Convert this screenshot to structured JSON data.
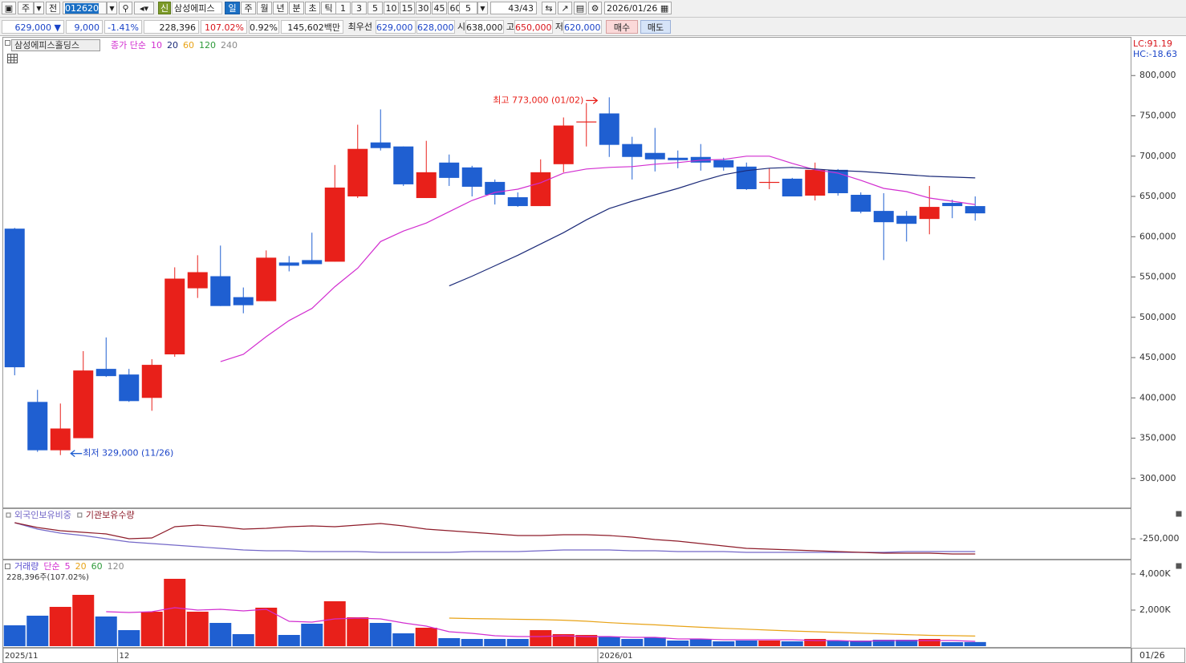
{
  "toolbar": {
    "market_button": "주",
    "all_button": "전",
    "code": "012620",
    "new_badge": "신",
    "name": "삼성에피스",
    "periods": [
      "일",
      "주",
      "월",
      "년",
      "분",
      "초",
      "틱"
    ],
    "intervals": [
      "1",
      "3",
      "5",
      "10",
      "15",
      "30",
      "45",
      "60"
    ],
    "interval_input": "5",
    "count": "43/43",
    "date": "2026/01/26"
  },
  "quote_bar": {
    "price": "629,000 ▼",
    "change": "9,000",
    "change_rate": "-1.41%",
    "volume": "228,396",
    "volume_rate": "107.02%",
    "turnover": "0.92%",
    "amount": "145,602백만",
    "best_label": "최우선",
    "best_ask": "629,000",
    "best_bid": "628,000",
    "open_label": "시",
    "open": "638,000",
    "high_label": "고",
    "high": "650,000",
    "low_label": "저",
    "low": "620,000",
    "buy": "매수",
    "sell": "매도"
  },
  "x_axis_cursor": "01/26",
  "chart_data": [
    {
      "type": "candlestick",
      "title": "삼성에피스홀딩스",
      "legend_label": "종가 단순",
      "stats": [
        "LC:91.19",
        "HC:-18.63"
      ],
      "high_label": "최고 773,000 (01/02)",
      "low_label": "최저 329,000 (11/26)",
      "up_color": "#e8201a",
      "down_color": "#1f5fd1",
      "open": [
        610000,
        395000,
        335000,
        350000,
        436000,
        429000,
        400000,
        454000,
        536000,
        551000,
        525000,
        520000,
        568000,
        571000,
        569000,
        650000,
        717000,
        712000,
        648000,
        692000,
        686000,
        668000,
        649000,
        638000,
        690000,
        742000,
        753000,
        715000,
        704000,
        698000,
        699000,
        695000,
        687000,
        667000,
        672000,
        651000,
        683000,
        652000,
        632000,
        626000,
        622000,
        642000,
        638000
      ],
      "high": [
        611000,
        410000,
        393000,
        458000,
        475000,
        436000,
        448000,
        562000,
        577000,
        589000,
        537000,
        583000,
        576000,
        605000,
        689000,
        739000,
        758000,
        712000,
        719000,
        702000,
        688000,
        671000,
        655000,
        696000,
        748000,
        766000,
        773000,
        724000,
        735000,
        707000,
        715000,
        698000,
        692000,
        685000,
        673000,
        692000,
        684000,
        655000,
        654000,
        632000,
        663000,
        646000,
        650000
      ],
      "low": [
        428000,
        333000,
        329000,
        350000,
        426000,
        395000,
        384000,
        451000,
        524000,
        514000,
        505000,
        520000,
        557000,
        566000,
        569000,
        648000,
        707000,
        663000,
        648000,
        663000,
        650000,
        640000,
        637000,
        638000,
        680000,
        712000,
        699000,
        671000,
        681000,
        685000,
        682000,
        682000,
        658000,
        659000,
        650000,
        645000,
        651000,
        629000,
        571000,
        594000,
        603000,
        623000,
        620000
      ],
      "close": [
        438000,
        335000,
        362000,
        434000,
        427000,
        396000,
        441000,
        548000,
        556000,
        514000,
        515000,
        574000,
        564000,
        566000,
        661000,
        709000,
        710000,
        665000,
        680000,
        673000,
        662000,
        652000,
        638000,
        680000,
        738000,
        743000,
        714000,
        699000,
        696000,
        695000,
        692000,
        686000,
        659000,
        668000,
        650000,
        683000,
        654000,
        631000,
        618000,
        616000,
        637000,
        638000,
        629000
      ],
      "series": [
        {
          "name": "10",
          "color": "#d22ed0",
          "values": [
            null,
            null,
            null,
            null,
            null,
            null,
            null,
            null,
            null,
            445000,
            454000,
            476000,
            496000,
            511000,
            538000,
            561000,
            594000,
            607000,
            617000,
            631000,
            645000,
            655000,
            659000,
            667000,
            679000,
            684000,
            686000,
            687000,
            690000,
            692000,
            695000,
            696000,
            700000,
            700000,
            691000,
            683000,
            679000,
            670000,
            660000,
            656000,
            648000,
            644000,
            640000
          ]
        },
        {
          "name": "20",
          "color": "#1b2a78",
          "values": [
            null,
            null,
            null,
            null,
            null,
            null,
            null,
            null,
            null,
            null,
            null,
            null,
            null,
            null,
            null,
            null,
            null,
            null,
            null,
            539000,
            551000,
            564000,
            577000,
            591000,
            605000,
            621000,
            635000,
            644000,
            652000,
            660000,
            669000,
            677000,
            682000,
            685000,
            686000,
            684000,
            682000,
            681000,
            679000,
            677000,
            675000,
            674000,
            673000
          ]
        }
      ],
      "legend_extra": [
        {
          "name": "60",
          "color": "#e8a317"
        },
        {
          "name": "120",
          "color": "#2e9a3a"
        },
        {
          "name": "240",
          "color": "#8a8a8a"
        }
      ],
      "ylim": [
        264000,
        846000
      ],
      "yticks": [
        {
          "value": 800000,
          "label": "800,000"
        },
        {
          "value": 750000,
          "label": "750,000"
        },
        {
          "value": 700000,
          "label": "700,000"
        },
        {
          "value": 650000,
          "label": "650,000"
        },
        {
          "value": 600000,
          "label": "600,000"
        },
        {
          "value": 550000,
          "label": "550,000"
        },
        {
          "value": 500000,
          "label": "500,000"
        },
        {
          "value": 450000,
          "label": "450,000"
        },
        {
          "value": 400000,
          "label": "400,000"
        },
        {
          "value": 350000,
          "label": "350,000"
        },
        {
          "value": 300000,
          "label": "300,000"
        }
      ]
    },
    {
      "type": "line",
      "series": [
        {
          "name": "외국인보유비중",
          "color": "#7468c8",
          "values": [
            -203700,
            -222100,
            -233600,
            -240400,
            -249600,
            -258800,
            -263400,
            -268000,
            -272600,
            -277200,
            -281800,
            -284000,
            -284000,
            -286300,
            -286300,
            -286300,
            -288600,
            -288600,
            -288600,
            -288600,
            -286300,
            -286300,
            -286300,
            -284000,
            -281800,
            -281800,
            -281800,
            -284000,
            -284000,
            -286300,
            -286300,
            -286300,
            -288600,
            -288600,
            -288600,
            -288600,
            -288600,
            -288600,
            -288600,
            -286300,
            -286300,
            -286300,
            -286300
          ]
        },
        {
          "name": "기관보유수량",
          "color": "#8e1c2a",
          "values": [
            -203700,
            -217500,
            -226700,
            -231300,
            -235900,
            -249600,
            -247300,
            -215200,
            -210600,
            -215200,
            -222100,
            -219800,
            -215200,
            -212900,
            -215200,
            -210600,
            -206000,
            -212900,
            -222100,
            -226700,
            -231300,
            -235900,
            -240400,
            -240400,
            -238100,
            -238100,
            -240400,
            -245000,
            -251900,
            -256500,
            -263400,
            -270300,
            -277200,
            -279500,
            -281800,
            -284000,
            -286300,
            -288600,
            -290900,
            -290900,
            -290900,
            -293200,
            -293200
          ]
        }
      ],
      "ylim": [
        -307000,
        -167000
      ],
      "yticks": [
        {
          "value": -250000,
          "label": "-250,000"
        }
      ]
    },
    {
      "type": "bar",
      "title": "거래량",
      "legend_label": "단순",
      "last_label": "228,396주(107.02%)",
      "categories": [
        "2025/11",
        null,
        null,
        null,
        null,
        "12",
        null,
        null,
        null,
        null,
        null,
        null,
        null,
        null,
        null,
        null,
        null,
        null,
        null,
        null,
        null,
        null,
        null,
        null,
        null,
        null,
        "2026/01",
        null,
        null,
        null,
        null,
        null,
        null,
        null,
        null,
        null,
        null,
        null,
        null,
        null,
        null,
        null,
        null
      ],
      "values": [
        1156,
        1689,
        2178,
        2844,
        1644,
        889,
        1911,
        3733,
        1911,
        1289,
        667,
        2133,
        622,
        1244,
        2489,
        1600,
        1289,
        711,
        1022,
        444,
        400,
        400,
        400,
        889,
        667,
        622,
        533,
        400,
        489,
        311,
        400,
        267,
        311,
        311,
        267,
        400,
        311,
        311,
        356,
        356,
        400,
        222,
        228.396
      ],
      "series": [
        {
          "name": "5",
          "color": "#d22ed0",
          "values": [
            null,
            null,
            null,
            null,
            1911,
            1867,
            1911,
            2133,
            2000,
            2044,
            1956,
            2044,
            1378,
            1333,
            1511,
            1556,
            1511,
            1289,
            1111,
            800,
            711,
            578,
            533,
            533,
            578,
            533,
            533,
            489,
            489,
            400,
            400,
            356,
            356,
            356,
            356,
            311,
            311,
            267,
            311,
            311,
            311,
            311,
            267
          ]
        },
        {
          "name": "20",
          "color": "#e8a317",
          "values": [
            null,
            null,
            null,
            null,
            null,
            null,
            null,
            null,
            null,
            null,
            null,
            null,
            null,
            null,
            null,
            null,
            null,
            null,
            null,
            1556,
            1530,
            1510,
            1490,
            1470,
            1440,
            1380,
            1300,
            1240,
            1180,
            1110,
            1050,
            990,
            940,
            890,
            840,
            800,
            760,
            720,
            680,
            640,
            600,
            580,
            560
          ]
        }
      ],
      "legend_extra": [
        {
          "name": "60",
          "color": "#2e9a3a"
        },
        {
          "name": "120",
          "color": "#8a8a8a"
        }
      ],
      "ylim": [
        0,
        4710
      ],
      "yticks": [
        {
          "value": 4000,
          "label": "4,000K"
        },
        {
          "value": 2000,
          "label": "2,000K"
        }
      ]
    }
  ]
}
